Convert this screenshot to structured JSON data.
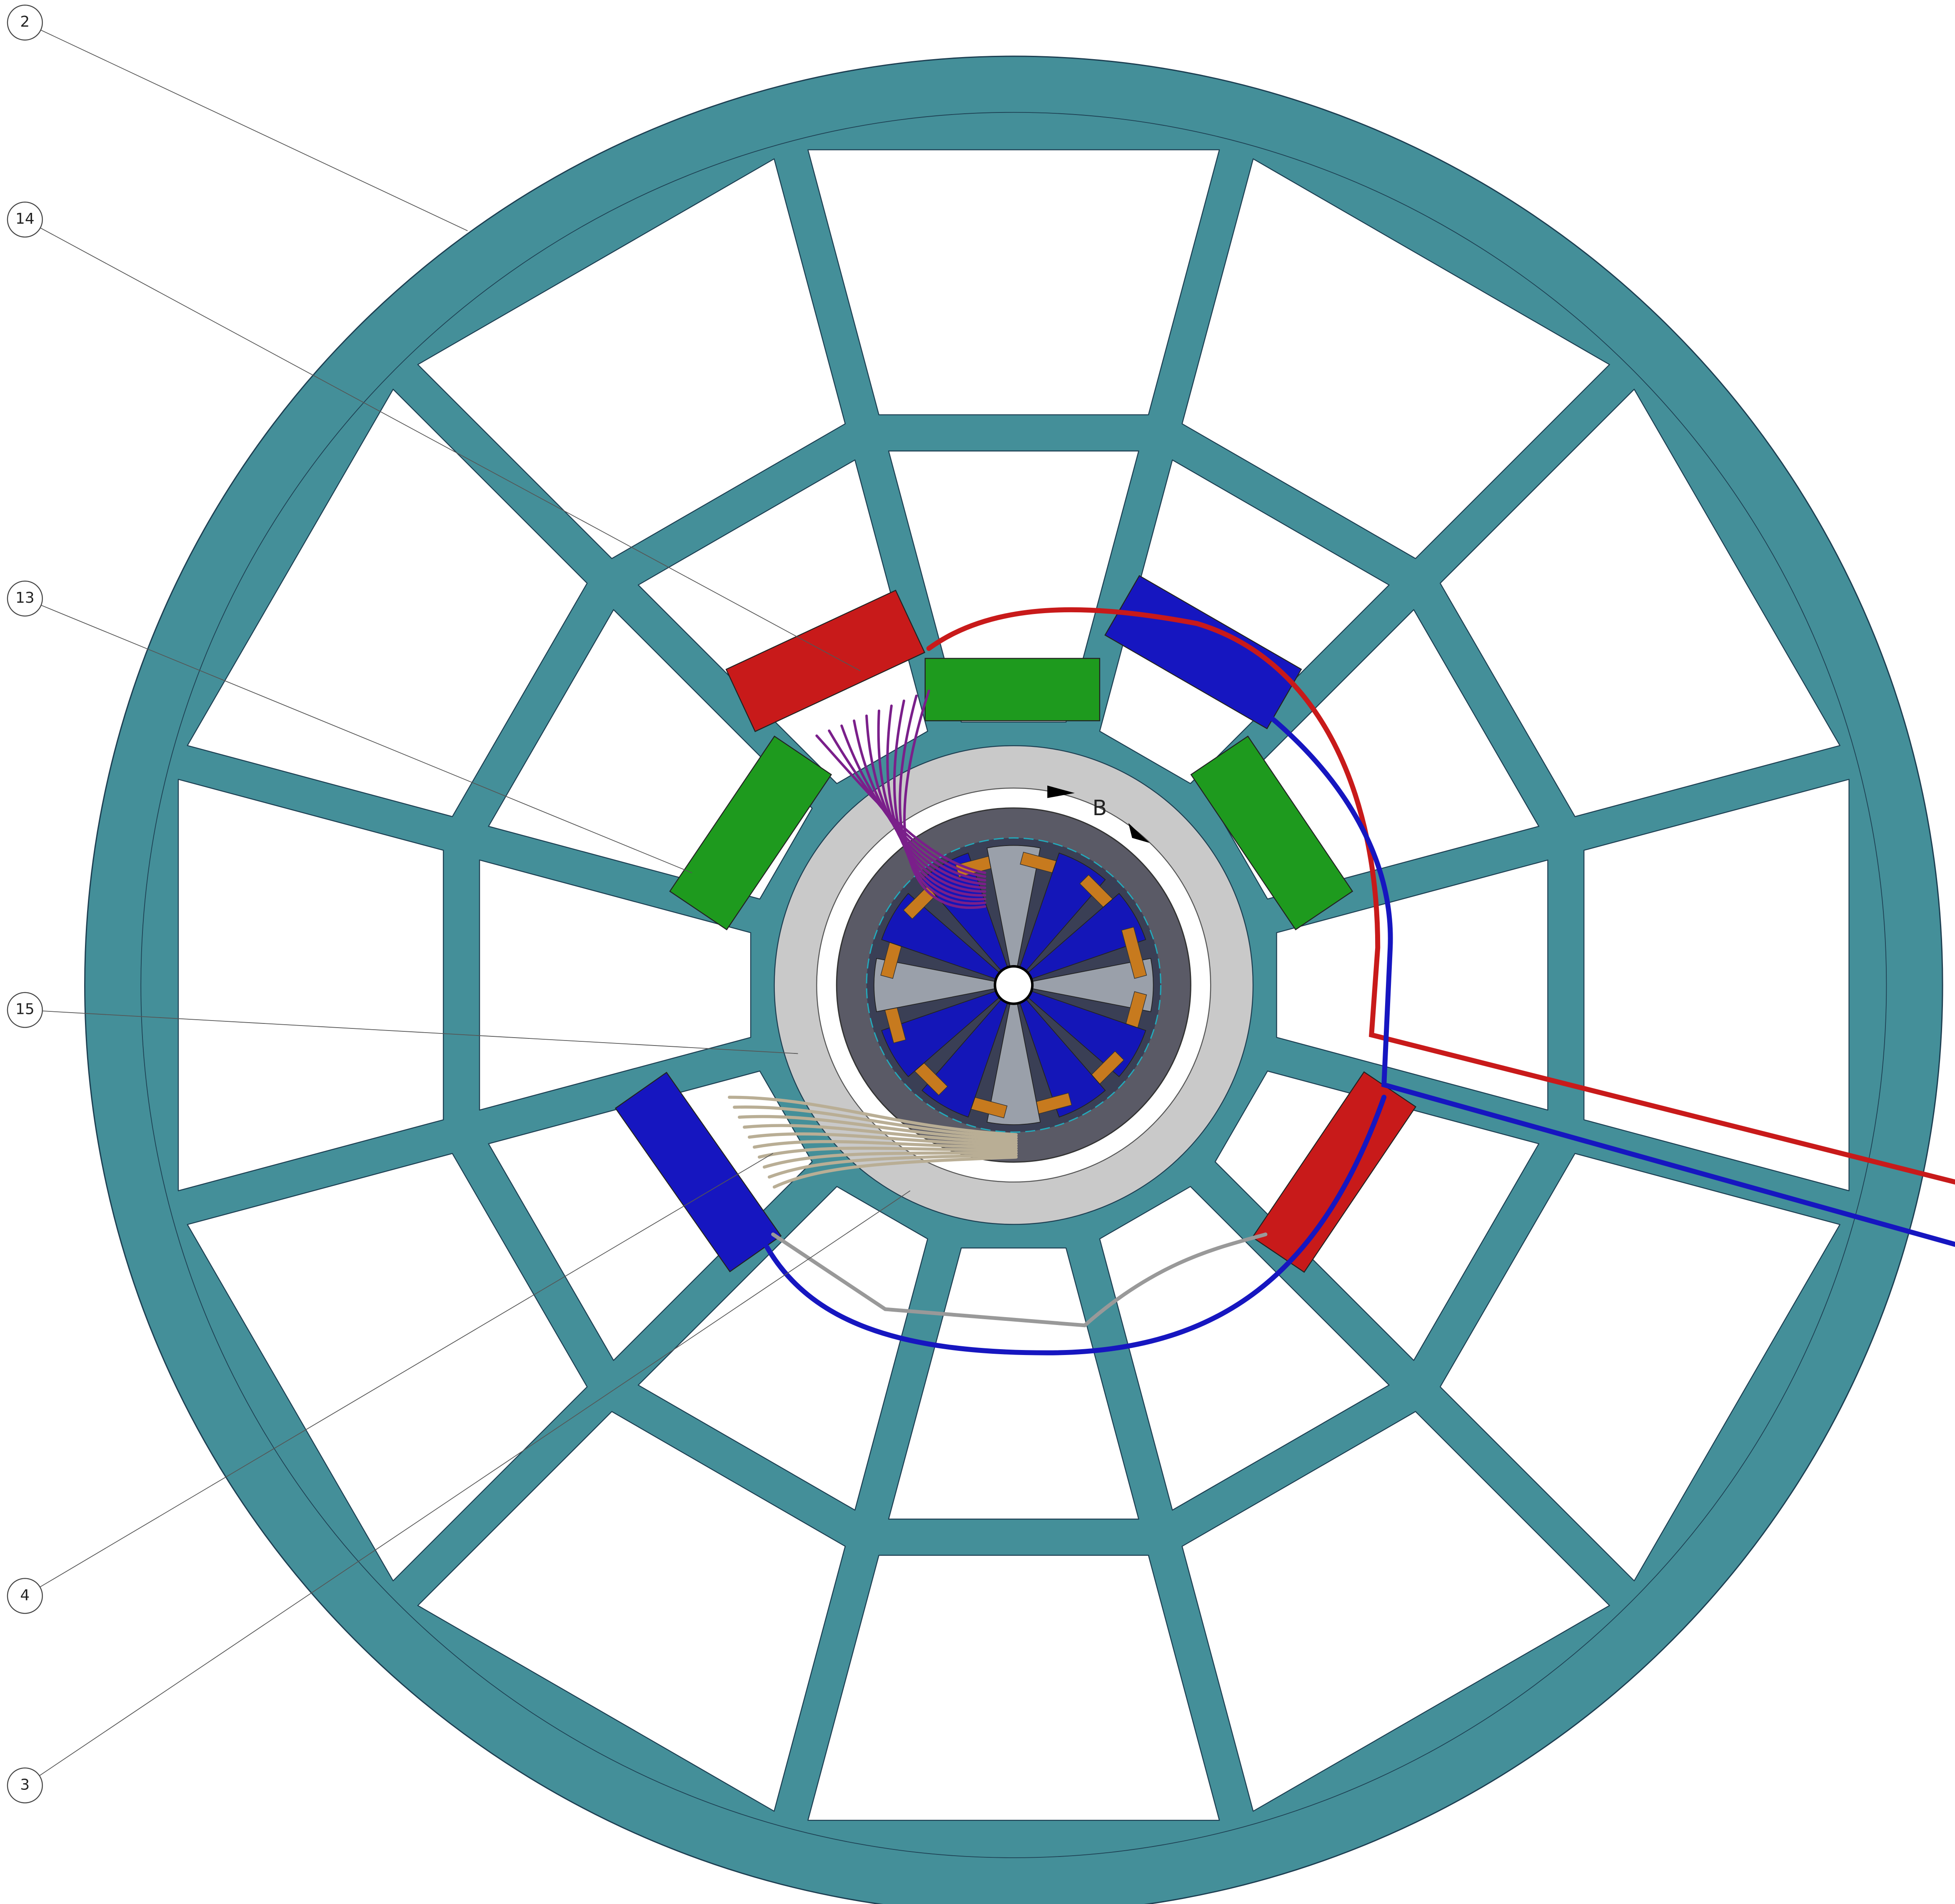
{
  "callouts": [
    "2",
    "14",
    "13",
    "15",
    "4",
    "3"
  ],
  "section_marker": "B"
}
